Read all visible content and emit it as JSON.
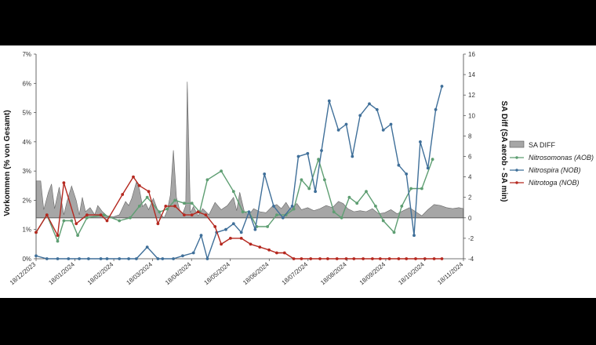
{
  "chart_data": {
    "type": "line",
    "ylabel_left": "Vorkommen (% von Gesamt)",
    "ylabel_right": "SA Diff (SA aerob - SA min)",
    "yleft_lim": [
      0,
      7
    ],
    "yleft_ticks": [
      "0%",
      "1%",
      "2%",
      "3%",
      "4%",
      "5%",
      "6%",
      "7%"
    ],
    "yright_lim": [
      -4,
      16
    ],
    "yright_ticks": [
      "-4",
      "-2",
      "0",
      "2",
      "4",
      "6",
      "8",
      "10",
      "12",
      "14",
      "16"
    ],
    "x_ticks": [
      "18/12/2023",
      "18/01/2024",
      "18/02/2024",
      "18/03/2024",
      "18/04/2024",
      "18/05/2024",
      "18/06/2024",
      "18/07/2024",
      "18/08/2024",
      "18/09/2024",
      "18/10/2024",
      "18/11/2024"
    ],
    "legend_position": "right",
    "area_series": {
      "name": "SA DIFF",
      "color": "#a6a6a6",
      "points": [
        [
          0,
          3.6
        ],
        [
          0.3,
          3.6
        ],
        [
          0.5,
          0.8
        ],
        [
          0.8,
          2.5
        ],
        [
          1.0,
          3.3
        ],
        [
          1.2,
          0.9
        ],
        [
          1.5,
          3.0
        ],
        [
          1.8,
          0.3
        ],
        [
          2.0,
          1.6
        ],
        [
          2.3,
          3.1
        ],
        [
          2.6,
          1.7
        ],
        [
          2.8,
          0.3
        ],
        [
          3.0,
          2.0
        ],
        [
          3.2,
          0.6
        ],
        [
          3.5,
          1.0
        ],
        [
          3.8,
          0.3
        ],
        [
          4.0,
          1.2
        ],
        [
          4.3,
          0.6
        ],
        [
          4.6,
          0.2
        ],
        [
          5.0,
          0.1
        ],
        [
          5.4,
          0.3
        ],
        [
          5.8,
          1.6
        ],
        [
          6.0,
          1.2
        ],
        [
          6.2,
          1.9
        ],
        [
          6.5,
          3.5
        ],
        [
          6.7,
          2.8
        ],
        [
          6.9,
          1.1
        ],
        [
          7.1,
          1.4
        ],
        [
          7.3,
          0.8
        ],
        [
          7.6,
          1.9
        ],
        [
          7.9,
          0.7
        ],
        [
          8.1,
          0.3
        ],
        [
          8.3,
          0.0
        ],
        [
          8.5,
          0.7
        ],
        [
          8.7,
          2.2
        ],
        [
          8.9,
          6.6
        ],
        [
          9.1,
          2.0
        ],
        [
          9.3,
          0.8
        ],
        [
          9.5,
          0.4
        ],
        [
          9.7,
          1.2
        ],
        [
          9.8,
          13.3
        ],
        [
          10.0,
          0.5
        ],
        [
          10.2,
          1.1
        ],
        [
          10.5,
          0.2
        ],
        [
          10.8,
          0.9
        ],
        [
          11.2,
          0.3
        ],
        [
          11.6,
          1.5
        ],
        [
          12.0,
          0.8
        ],
        [
          12.4,
          1.2
        ],
        [
          12.8,
          2.0
        ],
        [
          13.0,
          0.7
        ],
        [
          13.2,
          2.5
        ],
        [
          13.5,
          0.6
        ],
        [
          13.8,
          0.3
        ],
        [
          14.1,
          0.9
        ],
        [
          14.5,
          0.6
        ],
        [
          14.9,
          0.5
        ],
        [
          15.3,
          1.1
        ],
        [
          15.6,
          1.3
        ],
        [
          15.9,
          0.9
        ],
        [
          16.2,
          1.5
        ],
        [
          16.5,
          0.8
        ],
        [
          16.9,
          1.4
        ],
        [
          17.2,
          0.8
        ],
        [
          17.6,
          1.0
        ],
        [
          18.0,
          0.7
        ],
        [
          18.4,
          0.9
        ],
        [
          18.8,
          1.2
        ],
        [
          19.2,
          1.0
        ],
        [
          19.6,
          1.6
        ],
        [
          19.9,
          1.4
        ],
        [
          20.2,
          0.9
        ],
        [
          20.6,
          0.6
        ],
        [
          21.0,
          0.7
        ],
        [
          21.4,
          0.6
        ],
        [
          21.8,
          0.9
        ],
        [
          22.2,
          0.4
        ],
        [
          22.6,
          0.5
        ],
        [
          23.0,
          0.8
        ],
        [
          23.4,
          0.4
        ],
        [
          23.8,
          0.7
        ],
        [
          24.2,
          1.0
        ],
        [
          24.6,
          0.6
        ],
        [
          25.0,
          0.2
        ],
        [
          25.4,
          0.8
        ],
        [
          25.8,
          1.3
        ],
        [
          26.2,
          1.2
        ],
        [
          26.6,
          1.0
        ],
        [
          27.0,
          0.9
        ],
        [
          27.4,
          1.0
        ],
        [
          27.7,
          0.9
        ]
      ]
    },
    "series": [
      {
        "name": "Nitrosomonas (AOB)",
        "color": "#5e9e72",
        "points": [
          [
            0,
            0.9
          ],
          [
            0.7,
            1.5
          ],
          [
            1.4,
            0.6
          ],
          [
            1.8,
            1.3
          ],
          [
            2.3,
            1.3
          ],
          [
            2.7,
            0.8
          ],
          [
            3.3,
            1.4
          ],
          [
            4.4,
            1.5
          ],
          [
            5.4,
            1.3
          ],
          [
            6.1,
            1.4
          ],
          [
            6.7,
            1.8
          ],
          [
            7.2,
            2.1
          ],
          [
            8.0,
            1.6
          ],
          [
            8.5,
            1.7
          ],
          [
            9.0,
            2.0
          ],
          [
            9.6,
            1.9
          ],
          [
            10.1,
            1.9
          ],
          [
            10.6,
            1.6
          ],
          [
            11.1,
            2.7
          ],
          [
            12.0,
            3.0
          ],
          [
            12.8,
            2.3
          ],
          [
            13.4,
            1.6
          ],
          [
            13.8,
            1.6
          ],
          [
            14.3,
            1.1
          ],
          [
            15.0,
            1.1
          ],
          [
            15.6,
            1.5
          ],
          [
            16.2,
            1.5
          ],
          [
            16.7,
            1.7
          ],
          [
            17.2,
            2.7
          ],
          [
            17.7,
            2.4
          ],
          [
            18.3,
            3.4
          ],
          [
            18.7,
            2.7
          ],
          [
            19.3,
            1.6
          ],
          [
            19.8,
            1.4
          ],
          [
            20.3,
            2.1
          ],
          [
            20.8,
            1.9
          ],
          [
            21.4,
            2.3
          ],
          [
            22.0,
            1.8
          ],
          [
            22.5,
            1.3
          ],
          [
            23.2,
            0.9
          ],
          [
            23.7,
            1.8
          ],
          [
            24.3,
            2.4
          ],
          [
            25.0,
            2.4
          ],
          [
            25.7,
            3.4
          ]
        ]
      },
      {
        "name": "Nitrospira (NOB)",
        "color": "#3f6f99",
        "points": [
          [
            0,
            0.1
          ],
          [
            0.7,
            0
          ],
          [
            1.4,
            0
          ],
          [
            2.1,
            0
          ],
          [
            2.8,
            0
          ],
          [
            3.4,
            0
          ],
          [
            4.2,
            0
          ],
          [
            4.6,
            0
          ],
          [
            5.4,
            0
          ],
          [
            6.0,
            0
          ],
          [
            6.5,
            0
          ],
          [
            7.2,
            0.4
          ],
          [
            7.9,
            0
          ],
          [
            8.2,
            0
          ],
          [
            8.9,
            0
          ],
          [
            9.5,
            0.1
          ],
          [
            10.2,
            0.2
          ],
          [
            10.7,
            0.8
          ],
          [
            11.1,
            0
          ],
          [
            11.7,
            0.9
          ],
          [
            12.3,
            1.0
          ],
          [
            12.8,
            1.2
          ],
          [
            13.3,
            0.9
          ],
          [
            13.8,
            1.6
          ],
          [
            14.2,
            1.0
          ],
          [
            14.8,
            2.9
          ],
          [
            15.4,
            1.8
          ],
          [
            16.0,
            1.4
          ],
          [
            16.6,
            1.8
          ],
          [
            17.0,
            3.5
          ],
          [
            17.6,
            3.6
          ],
          [
            18.1,
            2.3
          ],
          [
            18.5,
            3.7
          ],
          [
            19.0,
            5.4
          ],
          [
            19.6,
            4.4
          ],
          [
            20.1,
            4.6
          ],
          [
            20.5,
            3.5
          ],
          [
            21.0,
            4.9
          ],
          [
            21.6,
            5.3
          ],
          [
            22.1,
            5.1
          ],
          [
            22.5,
            4.4
          ],
          [
            23.0,
            4.6
          ],
          [
            23.5,
            3.2
          ],
          [
            24.0,
            2.9
          ],
          [
            24.5,
            0.8
          ],
          [
            24.9,
            4.0
          ],
          [
            25.4,
            3.1
          ],
          [
            25.9,
            5.1
          ],
          [
            26.3,
            5.9
          ]
        ]
      },
      {
        "name": "Nitrotoga (NOB)",
        "color": "#b5281f",
        "points": [
          [
            0,
            0.9
          ],
          [
            0.7,
            1.5
          ],
          [
            1.4,
            0.8
          ],
          [
            1.8,
            2.6
          ],
          [
            2.6,
            1.2
          ],
          [
            3.3,
            1.5
          ],
          [
            4.2,
            1.5
          ],
          [
            4.6,
            1.3
          ],
          [
            5.6,
            2.2
          ],
          [
            6.3,
            2.8
          ],
          [
            6.7,
            2.5
          ],
          [
            7.3,
            2.3
          ],
          [
            7.9,
            1.2
          ],
          [
            8.4,
            1.8
          ],
          [
            9.0,
            1.8
          ],
          [
            9.6,
            1.5
          ],
          [
            10.1,
            1.5
          ],
          [
            10.5,
            1.6
          ],
          [
            11.0,
            1.5
          ],
          [
            11.6,
            1.1
          ],
          [
            12.0,
            0.5
          ],
          [
            12.6,
            0.7
          ],
          [
            13.3,
            0.7
          ],
          [
            13.9,
            0.5
          ],
          [
            14.5,
            0.4
          ],
          [
            15.1,
            0.3
          ],
          [
            15.6,
            0.2
          ],
          [
            16.1,
            0.2
          ],
          [
            16.7,
            0
          ],
          [
            17.2,
            0
          ],
          [
            17.8,
            0
          ],
          [
            18.4,
            0
          ],
          [
            18.9,
            0
          ],
          [
            19.5,
            0
          ],
          [
            20.1,
            0
          ],
          [
            20.6,
            0
          ],
          [
            21.2,
            0
          ],
          [
            21.8,
            0
          ],
          [
            22.3,
            0
          ],
          [
            22.9,
            0
          ],
          [
            23.5,
            0
          ],
          [
            24.0,
            0
          ],
          [
            24.6,
            0
          ],
          [
            25.2,
            0
          ],
          [
            25.8,
            0
          ],
          [
            26.3,
            0
          ]
        ]
      }
    ]
  }
}
